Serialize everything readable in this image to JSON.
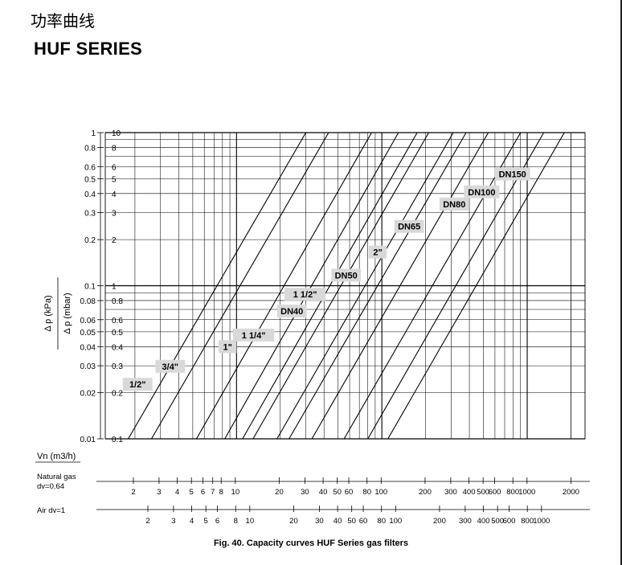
{
  "header": {
    "title_cn": "功率曲线",
    "series_title": "HUF SERIES"
  },
  "caption": "Fig. 40. Capacity curves HUF Series gas filters",
  "colors": {
    "ink": "#000000",
    "label_bg": "#d9d9d9",
    "background": "#ffffff"
  },
  "chart_data": {
    "type": "line",
    "title": "",
    "x_scale": "log",
    "y_scale": "log",
    "xlabel": "Vn (m3/h)",
    "ylabel_kpa": "Δ p (kPa)",
    "ylabel_mbar": "Δ p (mbar)",
    "xlim": [
      1.25,
      2500
    ],
    "ylim_kpa": [
      0.01,
      1
    ],
    "ylim_mbar": [
      0.1,
      10
    ],
    "y_ticks_kpa": [
      "0.01",
      "0.02",
      "0.03",
      "0.04",
      "0.05",
      "0.06",
      "0.08",
      "0.1",
      "0.2",
      "0.3",
      "0.4",
      "0.5",
      "0.6",
      "0.8",
      "1"
    ],
    "y_ticks_mbar": [
      "0.1",
      "0.2",
      "0.3",
      "0.4",
      "0.5",
      "0.6",
      "0.8",
      "1",
      "2",
      "3",
      "4",
      "5",
      "6",
      "8",
      "10"
    ],
    "grid": true,
    "x_scales": [
      {
        "name": "Natural gas",
        "name2": "dv=0.64",
        "ticks": [
          {
            "v": 2,
            "label": "2"
          },
          {
            "v": 3,
            "label": "3"
          },
          {
            "v": 4,
            "label": "4"
          },
          {
            "v": 5,
            "label": "5"
          },
          {
            "v": 6,
            "label": "6"
          },
          {
            "v": 7,
            "label": "7"
          },
          {
            "v": 8,
            "label": "8"
          },
          {
            "v": 10,
            "label": "10"
          },
          {
            "v": 20,
            "label": "20"
          },
          {
            "v": 30,
            "label": "30"
          },
          {
            "v": 40,
            "label": "40"
          },
          {
            "v": 50,
            "label": "50"
          },
          {
            "v": 60,
            "label": "60"
          },
          {
            "v": 80,
            "label": "80"
          },
          {
            "v": 100,
            "label": "100"
          },
          {
            "v": 200,
            "label": "200"
          },
          {
            "v": 300,
            "label": "300"
          },
          {
            "v": 400,
            "label": "400"
          },
          {
            "v": 500,
            "label": "500"
          },
          {
            "v": 600,
            "label": "600"
          },
          {
            "v": 800,
            "label": "800"
          },
          {
            "v": 1000,
            "label": "1000"
          },
          {
            "v": 2000,
            "label": "2000"
          }
        ]
      },
      {
        "name": "Air",
        "name2": "dv=1",
        "ticks": [
          {
            "v": 2,
            "label": "2"
          },
          {
            "v": 3,
            "label": "3"
          },
          {
            "v": 4,
            "label": "4"
          },
          {
            "v": 5,
            "label": "5"
          },
          {
            "v": 6,
            "label": "6"
          },
          {
            "v": 8,
            "label": "8"
          },
          {
            "v": 10,
            "label": "10"
          },
          {
            "v": 20,
            "label": "20"
          },
          {
            "v": 30,
            "label": "30"
          },
          {
            "v": 40,
            "label": "40"
          },
          {
            "v": 50,
            "label": "50"
          },
          {
            "v": 60,
            "label": "60"
          },
          {
            "v": 80,
            "label": "80"
          },
          {
            "v": 100,
            "label": "100"
          },
          {
            "v": 200,
            "label": "200"
          },
          {
            "v": 300,
            "label": "300"
          },
          {
            "v": 400,
            "label": "400"
          },
          {
            "v": 500,
            "label": "500"
          },
          {
            "v": 600,
            "label": "600"
          },
          {
            "v": 800,
            "label": "800"
          },
          {
            "v": 1000,
            "label": "1000"
          }
        ]
      }
    ],
    "series": [
      {
        "name": "1/2\"",
        "x": [
          1.8,
          30
        ],
        "y_kpa": [
          0.01,
          1
        ]
      },
      {
        "name": "3/4\"",
        "x": [
          2.6,
          43
        ],
        "y_kpa": [
          0.01,
          1
        ]
      },
      {
        "name": "1\"",
        "x": [
          5.3,
          85
        ],
        "y_kpa": [
          0.01,
          1
        ]
      },
      {
        "name": "1 1/4\"",
        "x": [
          8.3,
          130
        ],
        "y_kpa": [
          0.01,
          1
        ]
      },
      {
        "name": "DN40",
        "x": [
          11,
          175
        ],
        "y_kpa": [
          0.01,
          1
        ]
      },
      {
        "name": "1 1/2\"",
        "x": [
          13,
          210
        ],
        "y_kpa": [
          0.01,
          1
        ]
      },
      {
        "name": "DN50",
        "x": [
          19,
          310
        ],
        "y_kpa": [
          0.01,
          1
        ]
      },
      {
        "name": "2\"",
        "x": [
          23,
          380
        ],
        "y_kpa": [
          0.01,
          1
        ]
      },
      {
        "name": "DN65",
        "x": [
          33,
          540
        ],
        "y_kpa": [
          0.01,
          1
        ]
      },
      {
        "name": "DN80",
        "x": [
          55,
          900
        ],
        "y_kpa": [
          0.01,
          1
        ]
      },
      {
        "name": "DN100",
        "x": [
          80,
          1300
        ],
        "y_kpa": [
          0.01,
          1
        ]
      },
      {
        "name": "DN150",
        "x": [
          110,
          1800
        ],
        "y_kpa": [
          0.01,
          1
        ]
      }
    ]
  }
}
